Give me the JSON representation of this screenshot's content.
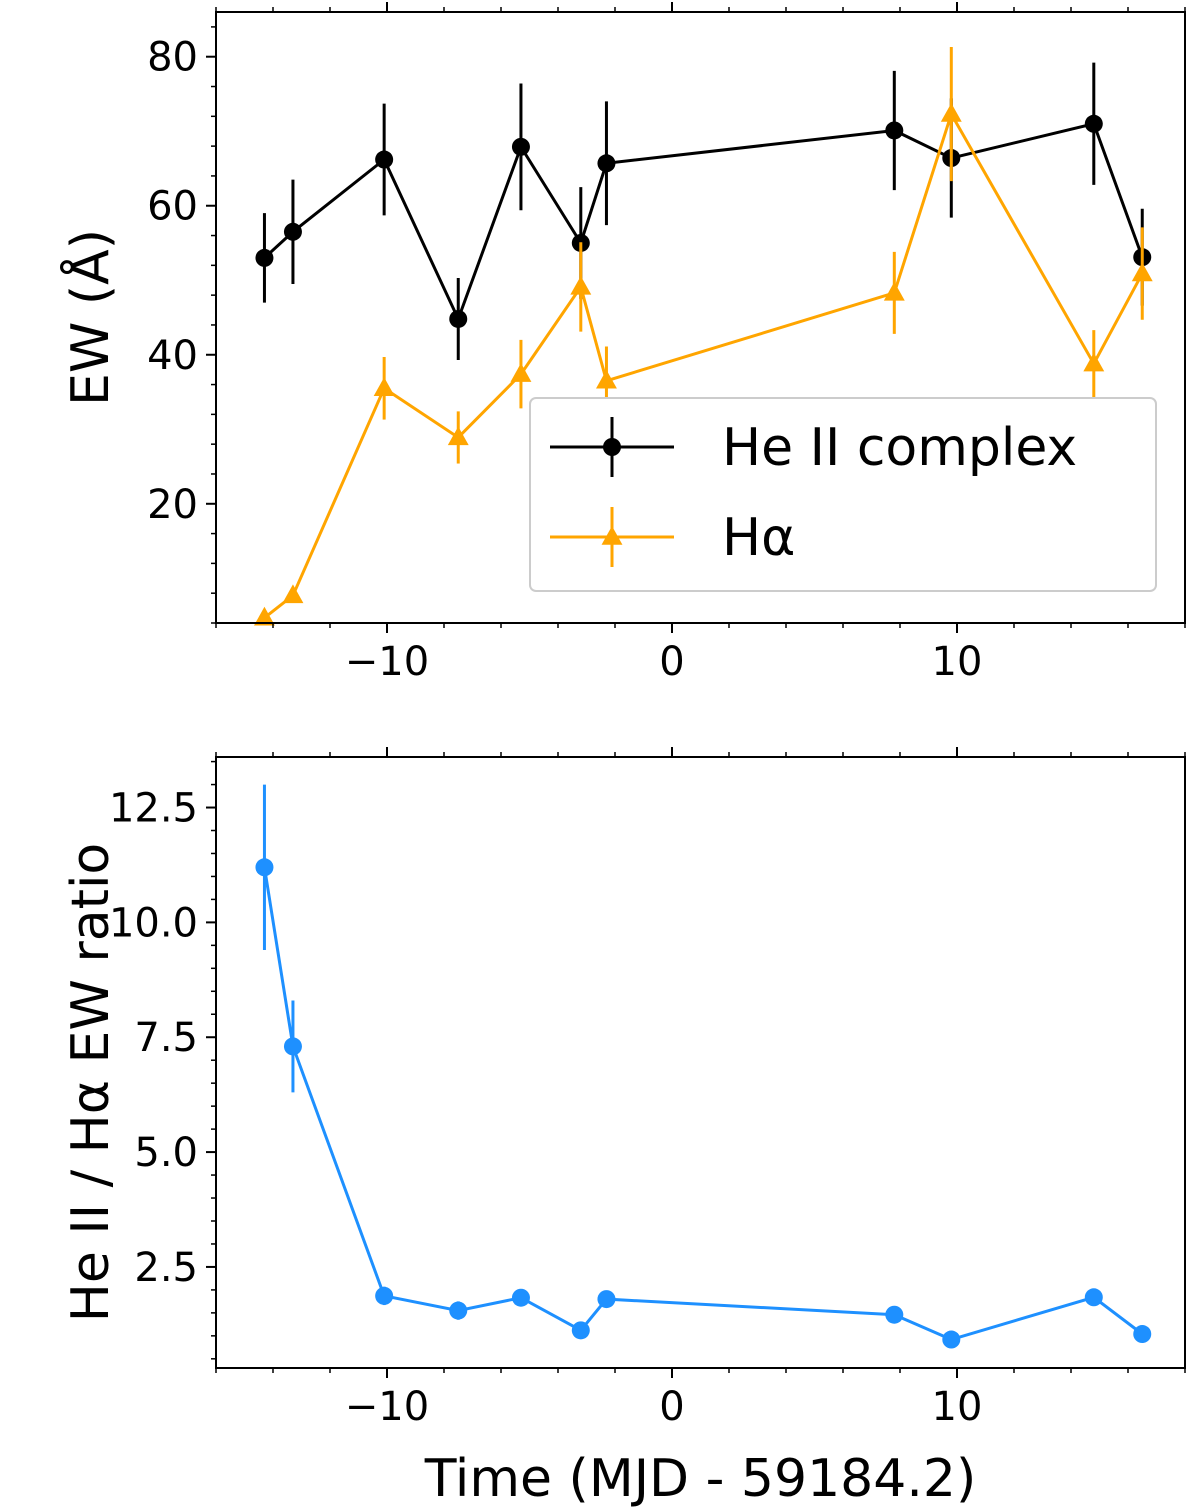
{
  "chart_data": [
    {
      "type": "line",
      "title": "",
      "xlabel": "",
      "ylabel": "EW (Å)",
      "xlim": [
        -16,
        18
      ],
      "ylim": [
        4,
        86
      ],
      "xticks": [
        -10,
        0,
        10
      ],
      "xtick_labels": [
        "−10",
        "0",
        "10"
      ],
      "yticks": [
        20,
        40,
        60,
        80
      ],
      "ytick_labels": [
        "20",
        "40",
        "60",
        "80"
      ],
      "grid": false,
      "legend_position": "lower-right",
      "series": [
        {
          "name": "He II complex",
          "color": "#000000",
          "marker": "circle",
          "x": [
            -14.3,
            -13.3,
            -10.1,
            -7.5,
            -5.3,
            -3.2,
            -2.3,
            7.8,
            9.8,
            14.8,
            16.5
          ],
          "y": [
            53.0,
            56.5,
            66.2,
            44.8,
            67.9,
            55.0,
            65.7,
            70.1,
            66.4,
            71.0,
            53.1
          ],
          "err": [
            6.0,
            7.0,
            7.5,
            5.5,
            8.5,
            7.5,
            8.3,
            8.0,
            8.0,
            8.2,
            6.5
          ]
        },
        {
          "name": "Hα",
          "color": "#FFA500",
          "marker": "triangle",
          "x": [
            -14.3,
            -13.3,
            -10.1,
            -7.5,
            -5.3,
            -3.2,
            -2.3,
            7.8,
            9.8,
            14.8,
            16.5
          ],
          "y": [
            4.7,
            7.7,
            35.5,
            28.9,
            37.4,
            49.1,
            36.5,
            48.3,
            72.3,
            38.8,
            50.9
          ],
          "err": [
            0.5,
            0.8,
            4.2,
            3.5,
            4.6,
            6.0,
            4.6,
            5.5,
            9.0,
            4.5,
            6.2
          ]
        }
      ]
    },
    {
      "type": "line",
      "title": "",
      "xlabel": "Time (MJD - 59184.2)",
      "ylabel": "He II / Hα  EW ratio",
      "xlim": [
        -16,
        18
      ],
      "ylim": [
        0.3,
        13.6
      ],
      "xticks": [
        -10,
        0,
        10
      ],
      "xtick_labels": [
        "−10",
        "0",
        "10"
      ],
      "yticks": [
        2.5,
        5.0,
        7.5,
        10.0,
        12.5
      ],
      "ytick_labels": [
        "2.5",
        "5.0",
        "7.5",
        "10.0",
        "12.5"
      ],
      "grid": false,
      "series": [
        {
          "color": "#1E90FF",
          "marker": "circle",
          "x": [
            -14.3,
            -13.3,
            -10.1,
            -7.5,
            -5.3,
            -3.2,
            -2.3,
            7.8,
            9.8,
            14.8,
            16.5
          ],
          "y": [
            11.2,
            7.3,
            1.87,
            1.55,
            1.83,
            1.12,
            1.8,
            1.46,
            0.92,
            1.84,
            1.04
          ],
          "err": [
            1.8,
            1.0,
            0.2,
            0.2,
            0.12,
            0.1,
            0.12,
            0.1,
            0.08,
            0.1,
            0.08
          ]
        }
      ]
    }
  ]
}
